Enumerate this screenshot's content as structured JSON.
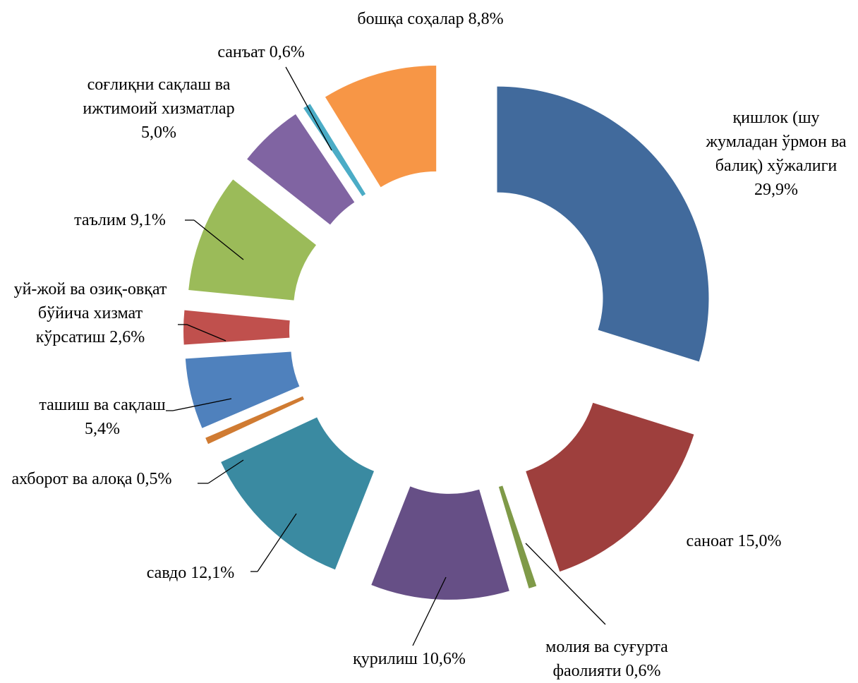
{
  "chart_data": {
    "type": "donut",
    "categories": [
      "қишлок (шу жумладан ўрмон ва балиқ) хўжалиги",
      "саноат",
      "молия ва суғурта фаолияти",
      "қурилиш",
      "савдо",
      "ахборот ва алоқа",
      "ташиш ва сақлаш",
      "уй-жой ва озиқ-овқат бўйича хизмат кўрсатиш",
      "таълим",
      "соғлиқни сақлаш ва ижтимоий хизматлар",
      "санъат",
      "бошқа соҳалар"
    ],
    "values": [
      29.9,
      15.0,
      0.6,
      10.6,
      12.1,
      0.5,
      5.4,
      2.6,
      9.1,
      5.0,
      0.6,
      8.8
    ],
    "value_labels": [
      "29,9%",
      "15,0%",
      "0,6%",
      "10,6%",
      "12,1%",
      "0,5%",
      "5,4%",
      "2,6%",
      "9,1%",
      "5,0%",
      "0,6%",
      "8,8%"
    ],
    "colors": [
      "#416a9c",
      "#9e3f3d",
      "#7f9a48",
      "#664f86",
      "#3a8aa1",
      "#d07b32",
      "#4f81bd",
      "#c0504d",
      "#9bbb59",
      "#8064a2",
      "#4bacc6",
      "#f79646"
    ]
  }
}
